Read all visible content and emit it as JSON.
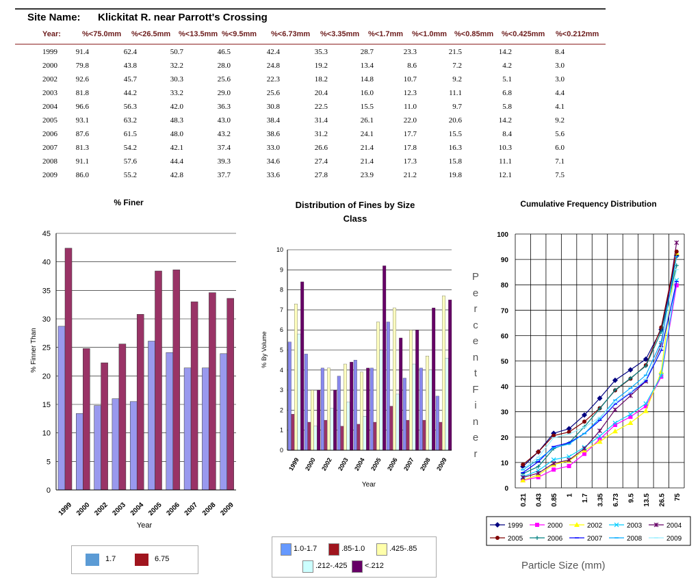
{
  "header": {
    "site_label": "Site Name:",
    "site_name": "Klickitat R. near Parrott's Crossing"
  },
  "table": {
    "columns": [
      "Year:",
      "%<75.0mm",
      "%<26.5mm",
      "%<13.5mm",
      "%<9.5mm",
      "%<6.73mm",
      "%<3.35mm",
      "%<1.7mm",
      "%<1.0mm",
      "%<0.85mm",
      "%<0.425mm",
      "%<0.212mm"
    ],
    "rows": [
      [
        "1999",
        "91.4",
        "62.4",
        "50.7",
        "46.5",
        "42.4",
        "35.3",
        "28.7",
        "23.3",
        "21.5",
        "14.2",
        "8.4"
      ],
      [
        "2000",
        "79.8",
        "43.8",
        "32.2",
        "28.0",
        "24.8",
        "19.2",
        "13.4",
        "8.6",
        "7.2",
        "4.2",
        "3.0"
      ],
      [
        "2002",
        "92.6",
        "45.7",
        "30.3",
        "25.6",
        "22.3",
        "18.2",
        "14.8",
        "10.7",
        "9.2",
        "5.1",
        "3.0"
      ],
      [
        "2003",
        "81.8",
        "44.2",
        "33.2",
        "29.0",
        "25.6",
        "20.4",
        "16.0",
        "12.3",
        "11.1",
        "6.8",
        "4.4"
      ],
      [
        "2004",
        "96.6",
        "56.3",
        "42.0",
        "36.3",
        "30.8",
        "22.5",
        "15.5",
        "11.0",
        "9.7",
        "5.8",
        "4.1"
      ],
      [
        "2005",
        "93.1",
        "63.2",
        "48.3",
        "43.0",
        "38.4",
        "31.4",
        "26.1",
        "22.0",
        "20.6",
        "14.2",
        "9.2"
      ],
      [
        "2006",
        "87.6",
        "61.5",
        "48.0",
        "43.2",
        "38.6",
        "31.2",
        "24.1",
        "17.7",
        "15.5",
        "8.4",
        "5.6"
      ],
      [
        "2007",
        "81.3",
        "54.2",
        "42.1",
        "37.4",
        "33.0",
        "26.6",
        "21.4",
        "17.8",
        "16.3",
        "10.3",
        "6.0"
      ],
      [
        "2008",
        "91.1",
        "57.6",
        "44.4",
        "39.3",
        "34.6",
        "27.4",
        "21.4",
        "17.3",
        "15.8",
        "11.1",
        "7.1"
      ],
      [
        "2009",
        "86.0",
        "55.2",
        "42.8",
        "37.7",
        "33.6",
        "27.8",
        "23.9",
        "21.2",
        "19.8",
        "12.1",
        "7.5"
      ]
    ]
  },
  "chart_data": [
    {
      "type": "bar",
      "title": "% Finer",
      "xlabel": "Year",
      "ylabel": "% Finner Than",
      "ylim": [
        0,
        45
      ],
      "yticks": [
        0,
        5,
        10,
        15,
        20,
        25,
        30,
        35,
        40,
        45
      ],
      "categories": [
        "1999",
        "2000",
        "2002",
        "2003",
        "2004",
        "2005",
        "2006",
        "2007",
        "2008",
        "2009"
      ],
      "series": [
        {
          "name": "1.7",
          "values": [
            28.7,
            13.4,
            14.8,
            16.0,
            15.5,
            26.1,
            24.1,
            21.4,
            21.4,
            23.9
          ],
          "color": "#9999ee",
          "legend_color": "#5b9bd5"
        },
        {
          "name": "6.75",
          "values": [
            42.4,
            24.8,
            22.3,
            25.6,
            30.8,
            38.4,
            38.6,
            33.0,
            34.6,
            33.6
          ],
          "color": "#993366",
          "legend_color": "#a0151e"
        }
      ],
      "legend": "bottom"
    },
    {
      "type": "bar",
      "title": "Distribution of Fines by Size Class",
      "xlabel": "Year",
      "ylabel": "% By Volume",
      "ylim": [
        0,
        10
      ],
      "yticks": [
        0,
        1,
        2,
        3,
        4,
        5,
        6,
        7,
        8,
        9,
        10
      ],
      "categories": [
        "1999",
        "2000",
        "2002",
        "2003",
        "2004",
        "2005",
        "2006",
        "2007",
        "2008",
        "2009"
      ],
      "series": [
        {
          "name": "1.0-1.7",
          "values": [
            5.4,
            4.8,
            4.1,
            3.7,
            4.5,
            4.1,
            6.4,
            3.6,
            4.1,
            2.7
          ],
          "color": "#8888ee"
        },
        {
          "name": ".85-1.0",
          "values": [
            1.8,
            1.4,
            1.5,
            1.2,
            1.3,
            1.4,
            2.2,
            1.5,
            1.5,
            1.4
          ],
          "color": "#993366"
        },
        {
          "name": ".425-.85",
          "values": [
            7.3,
            3.0,
            4.1,
            4.3,
            3.9,
            6.4,
            7.1,
            6.0,
            4.7,
            7.7
          ],
          "color": "#ffffc0"
        },
        {
          "name": ".212-.425",
          "values": [
            5.8,
            1.2,
            2.1,
            2.4,
            1.7,
            5.0,
            2.8,
            4.3,
            4.0,
            4.6
          ],
          "color": "#ddffff"
        },
        {
          "name": "<.212",
          "values": [
            8.4,
            3.0,
            3.0,
            4.4,
            4.1,
            9.2,
            5.6,
            6.0,
            7.1,
            7.5
          ],
          "color": "#660066"
        }
      ],
      "legend": "bottom"
    },
    {
      "type": "line",
      "title": "Cumulative Frequency Distribution",
      "xlabel": "Particle Size (mm)",
      "ylabel": "Percent Finer",
      "ylim": [
        0,
        100
      ],
      "yticks": [
        0,
        10,
        20,
        30,
        40,
        50,
        60,
        70,
        80,
        90,
        100
      ],
      "categories": [
        "0.21",
        "0.43",
        "0.85",
        "1",
        "1.7",
        "3.35",
        "6.73",
        "9.5",
        "13.5",
        "26.5",
        "75"
      ],
      "series": [
        {
          "name": "1999",
          "values": [
            8.4,
            14.2,
            21.5,
            23.3,
            28.7,
            35.3,
            42.4,
            46.5,
            50.7,
            62.4,
            91.4
          ],
          "color": "#000080",
          "marker": "diamond"
        },
        {
          "name": "2000",
          "values": [
            3.0,
            4.2,
            7.2,
            8.6,
            13.4,
            19.2,
            24.8,
            28.0,
            32.2,
            43.8,
            79.8
          ],
          "color": "#ff00ff",
          "marker": "square"
        },
        {
          "name": "2002",
          "values": [
            3.0,
            5.1,
            9.2,
            10.7,
            14.8,
            18.2,
            22.3,
            25.6,
            30.3,
            45.7,
            92.6
          ],
          "color": "#ffff00",
          "marker": "triangle"
        },
        {
          "name": "2003",
          "values": [
            4.4,
            6.8,
            11.1,
            12.3,
            16.0,
            20.4,
            25.6,
            29.0,
            33.2,
            44.2,
            81.8
          ],
          "color": "#00ccff",
          "marker": "x"
        },
        {
          "name": "2004",
          "values": [
            4.1,
            5.8,
            9.7,
            11.0,
            15.5,
            22.5,
            30.8,
            36.3,
            42.0,
            56.3,
            96.6
          ],
          "color": "#660066",
          "marker": "star"
        },
        {
          "name": "2005",
          "values": [
            9.2,
            14.2,
            20.6,
            22.0,
            26.1,
            31.4,
            38.4,
            43.0,
            48.3,
            63.2,
            93.1
          ],
          "color": "#800000",
          "marker": "circle"
        },
        {
          "name": "2006",
          "values": [
            5.6,
            8.4,
            15.5,
            17.7,
            24.1,
            31.2,
            38.6,
            43.2,
            48.0,
            61.5,
            87.6
          ],
          "color": "#008080",
          "marker": "plus"
        },
        {
          "name": "2007",
          "values": [
            6.0,
            10.3,
            16.3,
            17.8,
            21.4,
            26.6,
            33.0,
            37.4,
            42.1,
            54.2,
            81.3
          ],
          "color": "#0000ff",
          "marker": "dash"
        },
        {
          "name": "2008",
          "values": [
            7.1,
            11.1,
            15.8,
            17.3,
            21.4,
            27.4,
            34.6,
            39.3,
            44.4,
            57.6,
            91.1
          ],
          "color": "#00aaff",
          "marker": "dash"
        },
        {
          "name": "2009",
          "values": [
            7.5,
            12.1,
            19.8,
            21.2,
            23.9,
            27.8,
            33.6,
            37.7,
            42.8,
            55.2,
            86.0
          ],
          "color": "#99eeff",
          "marker": "dash"
        }
      ],
      "grid": true,
      "legend": "bottom"
    }
  ]
}
